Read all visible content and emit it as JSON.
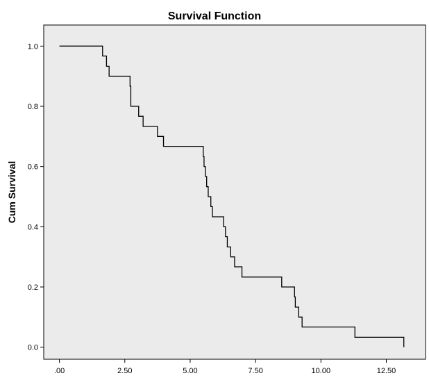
{
  "chart_data": {
    "type": "line",
    "subtype": "step-survival-curve",
    "title": "Survival Function",
    "xlabel": "",
    "ylabel": "Cum Survival",
    "xlim": [
      -0.6,
      14.0
    ],
    "ylim": [
      -0.04,
      1.07
    ],
    "x_ticks": [
      0.0,
      2.5,
      5.0,
      7.5,
      10.0,
      12.5
    ],
    "x_tick_labels": [
      ".00",
      "2.50",
      "5.00",
      "7.50",
      "10.00",
      "12.50"
    ],
    "y_ticks": [
      0.0,
      0.2,
      0.4,
      0.6,
      0.8,
      1.0
    ],
    "y_tick_labels": [
      "0.0",
      "0.2",
      "0.4",
      "0.6",
      "0.8",
      "1.0"
    ],
    "grid": false,
    "series": [
      {
        "x": [
          0.0,
          1.65,
          1.8,
          1.9,
          1.97,
          2.7,
          2.73,
          3.03,
          3.2,
          3.75,
          3.98,
          5.5,
          5.53,
          5.58,
          5.63,
          5.69,
          5.79,
          5.85,
          6.28,
          6.35,
          6.42,
          6.55,
          6.7,
          6.8,
          6.98,
          8.5,
          8.99,
          9.02,
          9.07,
          9.15,
          9.28,
          10.4,
          11.3,
          13.15,
          13.17
        ],
        "y": [
          1.0,
          0.967,
          0.933,
          0.9,
          0.9,
          0.867,
          0.8,
          0.767,
          0.733,
          0.7,
          0.667,
          0.633,
          0.6,
          0.567,
          0.533,
          0.5,
          0.467,
          0.433,
          0.4,
          0.367,
          0.333,
          0.3,
          0.267,
          0.267,
          0.233,
          0.2,
          0.167,
          0.133,
          0.133,
          0.1,
          0.067,
          0.067,
          0.033,
          0.033,
          0.0
        ]
      }
    ],
    "colors": {
      "plot_background": "#ebebeb",
      "line": "#000000",
      "frame": "#000000"
    }
  }
}
